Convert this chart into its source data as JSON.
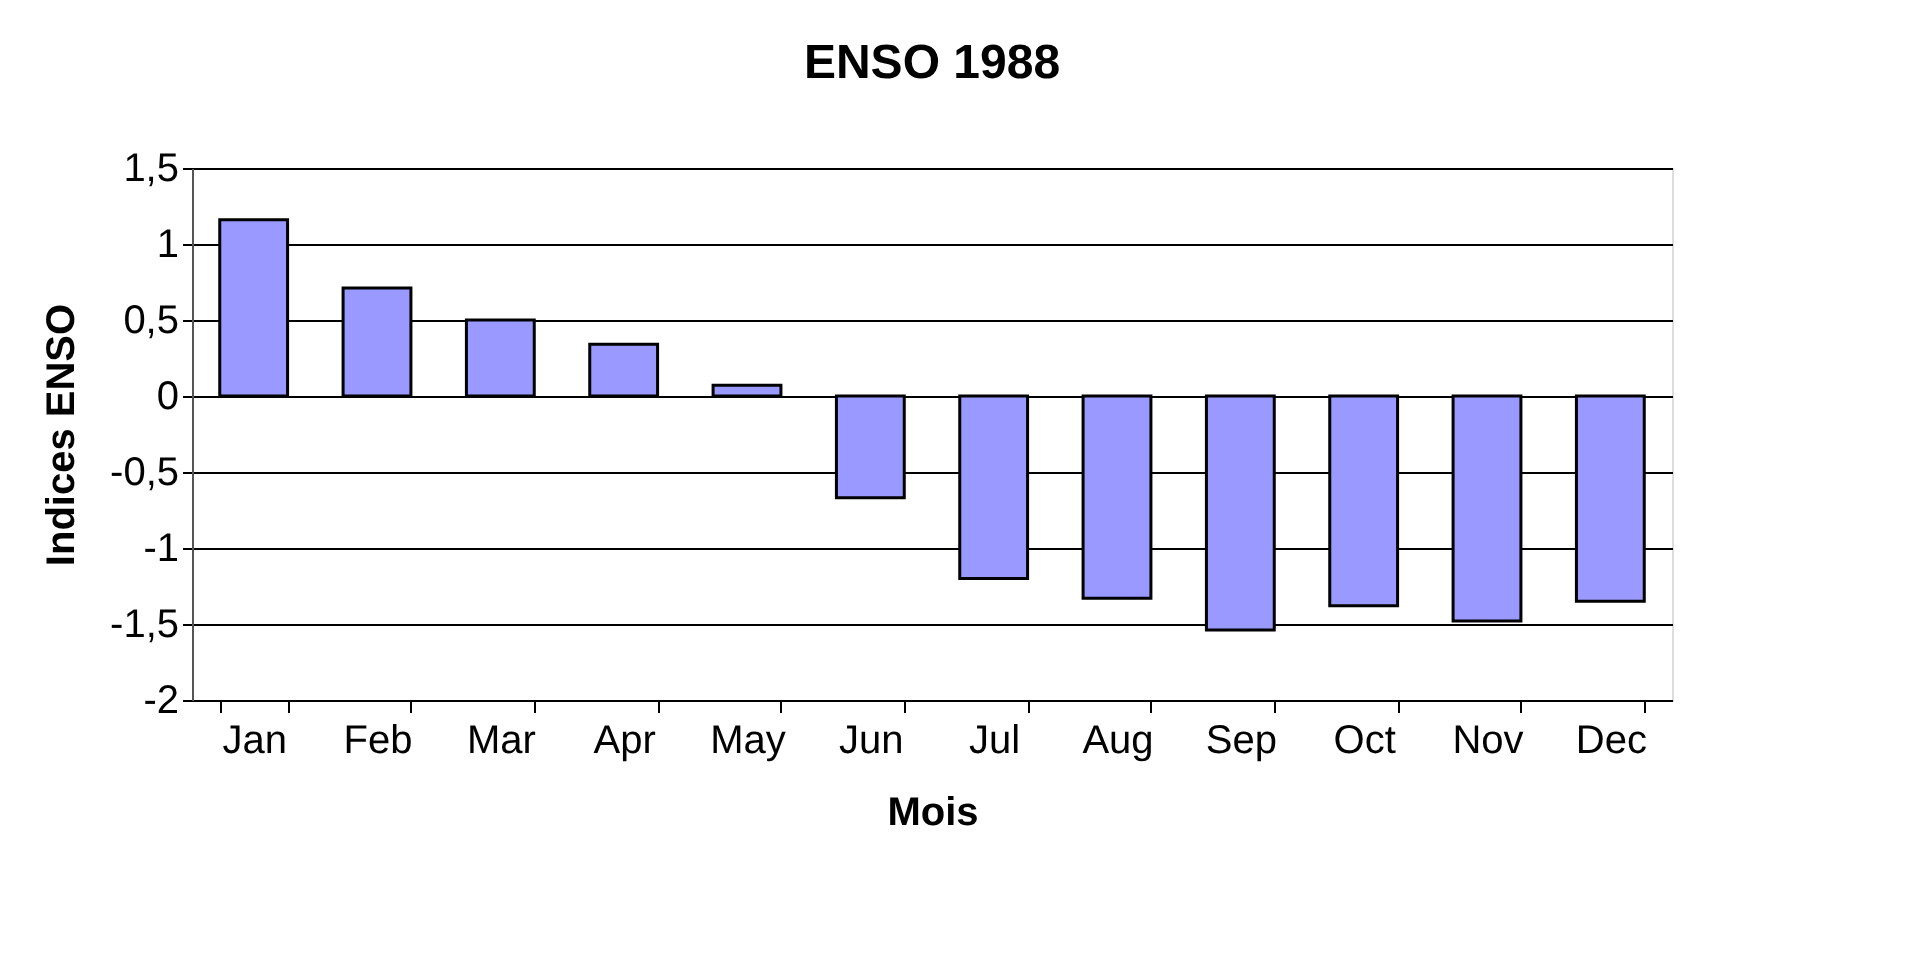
{
  "chart_data": {
    "type": "bar",
    "title": "ENSO 1988",
    "xlabel": "Mois",
    "ylabel": "Indices ENSO",
    "categories": [
      "Jan",
      "Feb",
      "Mar",
      "Apr",
      "May",
      "Jun",
      "Jul",
      "Aug",
      "Sep",
      "Oct",
      "Nov",
      "Dec"
    ],
    "values": [
      1.16,
      0.71,
      0.5,
      0.34,
      0.07,
      -0.67,
      -1.2,
      -1.33,
      -1.54,
      -1.38,
      -1.48,
      -1.35
    ],
    "color": "#9999ff",
    "ylim": [
      -2,
      1.5
    ],
    "yticks": [
      {
        "value": -2,
        "label": "-2"
      },
      {
        "value": -1.5,
        "label": "-1,5"
      },
      {
        "value": -1,
        "label": "-1"
      },
      {
        "value": -0.5,
        "label": "-0,5"
      },
      {
        "value": 0,
        "label": "0"
      },
      {
        "value": 0.5,
        "label": "0,5"
      },
      {
        "value": 1,
        "label": "1"
      },
      {
        "value": 1.5,
        "label": "1,5"
      }
    ],
    "grid": "y"
  }
}
